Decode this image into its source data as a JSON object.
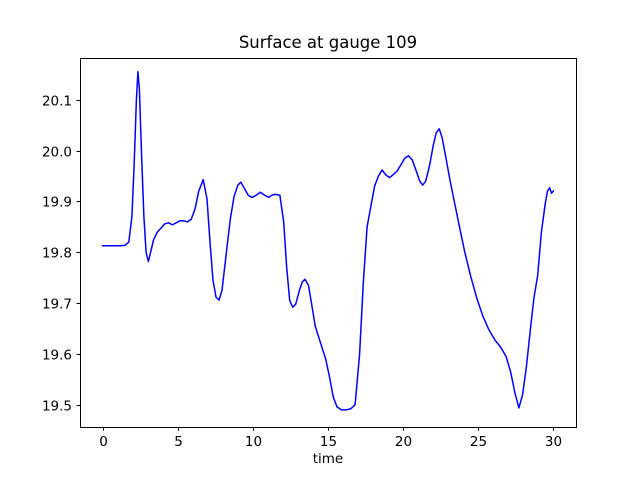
{
  "chart_data": {
    "type": "line",
    "title": "Surface at gauge 109",
    "xlabel": "time",
    "ylabel": "",
    "xlim": [
      -1.5,
      31.5
    ],
    "ylim": [
      19.456,
      20.183
    ],
    "x_ticks": [
      0,
      5,
      10,
      15,
      20,
      25,
      30
    ],
    "x_tick_labels": [
      "0",
      "5",
      "10",
      "15",
      "20",
      "25",
      "30"
    ],
    "y_ticks": [
      19.5,
      19.6,
      19.7,
      19.8,
      19.9,
      20.0,
      20.1
    ],
    "y_tick_labels": [
      "19.5",
      "19.6",
      "19.7",
      "19.8",
      "19.9",
      "20.0",
      "20.1"
    ],
    "grid": false,
    "background": "#ffffff",
    "axis_color": "#000000",
    "line_color": "#0000ff",
    "line_width": 1.5,
    "series": [
      {
        "x": [
          0,
          0.4,
          0.8,
          1.2,
          1.5,
          1.75,
          1.95,
          2.1,
          2.25,
          2.35,
          2.45,
          2.6,
          2.75,
          2.9,
          3.05,
          3.2,
          3.4,
          3.65,
          3.9,
          4.15,
          4.4,
          4.65,
          4.9,
          5.15,
          5.4,
          5.65,
          5.9,
          6.15,
          6.4,
          6.7,
          6.95,
          7.15,
          7.35,
          7.55,
          7.75,
          7.95,
          8.2,
          8.5,
          8.75,
          9.0,
          9.2,
          9.45,
          9.7,
          9.95,
          10.2,
          10.5,
          10.8,
          11.05,
          11.3,
          11.55,
          11.8,
          12.05,
          12.25,
          12.45,
          12.65,
          12.85,
          13.1,
          13.3,
          13.47,
          13.7,
          13.9,
          14.15,
          14.5,
          14.85,
          15.1,
          15.35,
          15.6,
          15.9,
          16.2,
          16.5,
          16.8,
          17.1,
          17.35,
          17.6,
          17.85,
          18.1,
          18.35,
          18.6,
          18.85,
          19.1,
          19.35,
          19.6,
          19.85,
          20.1,
          20.35,
          20.6,
          20.85,
          21.1,
          21.3,
          21.5,
          21.75,
          22.0,
          22.2,
          22.4,
          22.6,
          22.85,
          23.1,
          23.4,
          23.75,
          24.1,
          24.5,
          24.9,
          25.3,
          25.7,
          26.1,
          26.5,
          26.85,
          27.15,
          27.45,
          27.7,
          27.95,
          28.2,
          28.45,
          28.7,
          28.95,
          29.2,
          29.45,
          29.6,
          29.75,
          29.87,
          30.0
        ],
        "y": [
          19.813,
          19.813,
          19.813,
          19.813,
          19.814,
          19.82,
          19.87,
          19.97,
          20.1,
          20.155,
          20.12,
          19.99,
          19.87,
          19.8,
          19.782,
          19.8,
          19.825,
          19.84,
          19.848,
          19.856,
          19.858,
          19.854,
          19.858,
          19.862,
          19.862,
          19.86,
          19.865,
          19.885,
          19.92,
          19.943,
          19.905,
          19.82,
          19.745,
          19.712,
          19.706,
          19.725,
          19.79,
          19.865,
          19.91,
          19.932,
          19.938,
          19.925,
          19.912,
          19.908,
          19.912,
          19.918,
          19.912,
          19.908,
          19.913,
          19.914,
          19.912,
          19.86,
          19.77,
          19.705,
          19.692,
          19.698,
          19.725,
          19.742,
          19.747,
          19.735,
          19.7,
          19.655,
          19.622,
          19.59,
          19.555,
          19.515,
          19.496,
          19.49,
          19.49,
          19.492,
          19.5,
          19.6,
          19.74,
          19.85,
          19.89,
          19.93,
          19.95,
          19.962,
          19.952,
          19.947,
          19.953,
          19.96,
          19.972,
          19.985,
          19.99,
          19.982,
          19.962,
          19.94,
          19.932,
          19.94,
          19.97,
          20.01,
          20.035,
          20.043,
          20.025,
          19.985,
          19.945,
          19.9,
          19.85,
          19.8,
          19.752,
          19.71,
          19.675,
          19.648,
          19.628,
          19.613,
          19.595,
          19.565,
          19.522,
          19.494,
          19.52,
          19.575,
          19.645,
          19.71,
          19.755,
          19.84,
          19.895,
          19.92,
          19.927,
          19.916,
          19.921
        ]
      }
    ]
  }
}
